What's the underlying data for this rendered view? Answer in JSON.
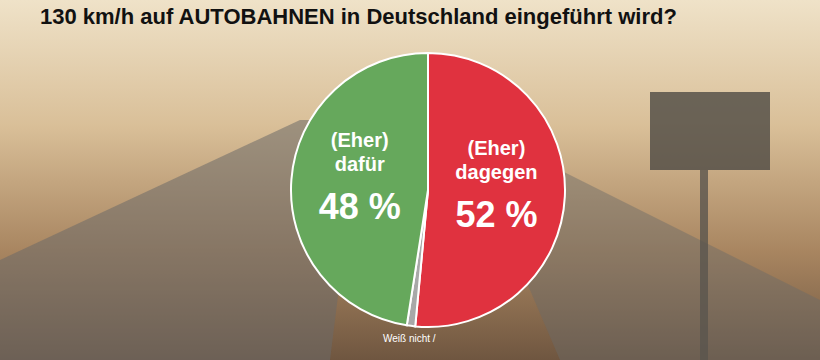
{
  "chart_data": {
    "type": "pie",
    "title": "130 km/h auf AUTOBAHNEN in Deutschland eingeführt wird?",
    "categories": [
      "(Eher) dagegen",
      "Weiß nicht /",
      "(Eher) dafür"
    ],
    "values": [
      52,
      1,
      48
    ],
    "value_labels": [
      "52 %",
      null,
      "48 %"
    ],
    "colors": [
      "#e0323f",
      "#a8a8a8",
      "#66a85c"
    ],
    "data_labels": true,
    "legend": null
  }
}
